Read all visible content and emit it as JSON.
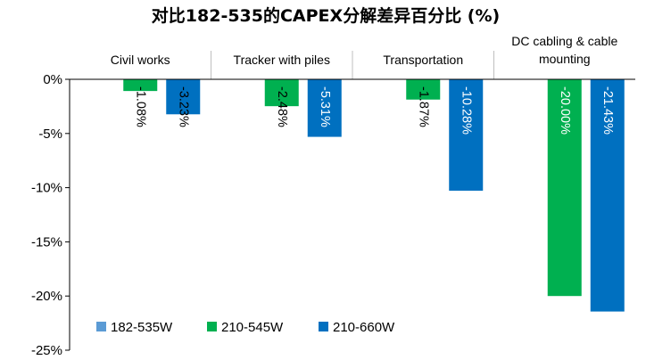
{
  "chart_data": {
    "type": "bar",
    "title": "对比182-535的CAPEX分解差异百分比 (%)",
    "categories": [
      "Civil works",
      "Tracker with piles",
      "Transportation",
      "DC cabling & cable mounting"
    ],
    "category_lines": [
      [
        "Civil works"
      ],
      [
        "Tracker with piles"
      ],
      [
        "Transportation"
      ],
      [
        "DC cabling & cable",
        "mounting"
      ]
    ],
    "series": [
      {
        "name": "182-535W",
        "color": "#5b9bd5",
        "values": [
          0,
          0,
          0,
          0
        ],
        "labels": [
          "",
          "",
          "",
          ""
        ]
      },
      {
        "name": "210-545W",
        "color": "#00b050",
        "values": [
          -1.08,
          -2.48,
          -1.87,
          -20.0
        ],
        "labels": [
          "-1.08%",
          "-2.48%",
          "-1.87%",
          "-20.00%"
        ]
      },
      {
        "name": "210-660W",
        "color": "#0070c0",
        "values": [
          -3.23,
          -5.31,
          -10.28,
          -21.43
        ],
        "labels": [
          "-3.23%",
          "-5.31%",
          "-10.28%",
          "-21.43%"
        ]
      }
    ],
    "ylim": [
      -25,
      0
    ],
    "yticks": [
      0,
      -5,
      -10,
      -15,
      -20,
      -25
    ],
    "ytick_labels": [
      "0%",
      "-5%",
      "-10%",
      "-15%",
      "-20%",
      "-25%"
    ],
    "legend_position": "bottom-left",
    "grid": false
  }
}
